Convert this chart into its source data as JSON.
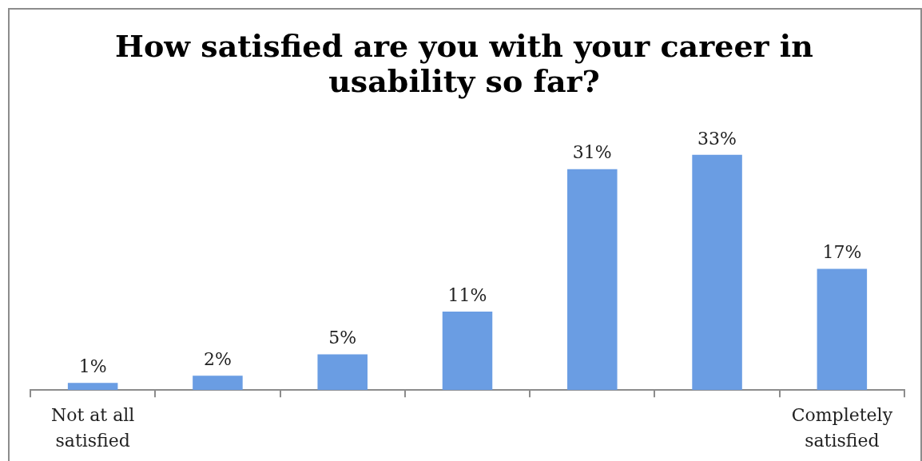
{
  "chart_data": {
    "type": "bar",
    "title": "How satisfied are you with your career in usability so far?",
    "categories": [
      "Not at all satisfied",
      null,
      null,
      null,
      null,
      null,
      "Completely satisfied"
    ],
    "values": [
      1,
      2,
      5,
      11,
      31,
      33,
      17
    ],
    "value_labels": [
      "1%",
      "2%",
      "5%",
      "11%",
      "31%",
      "33%",
      "17%"
    ],
    "color": "#6a9de3"
  }
}
